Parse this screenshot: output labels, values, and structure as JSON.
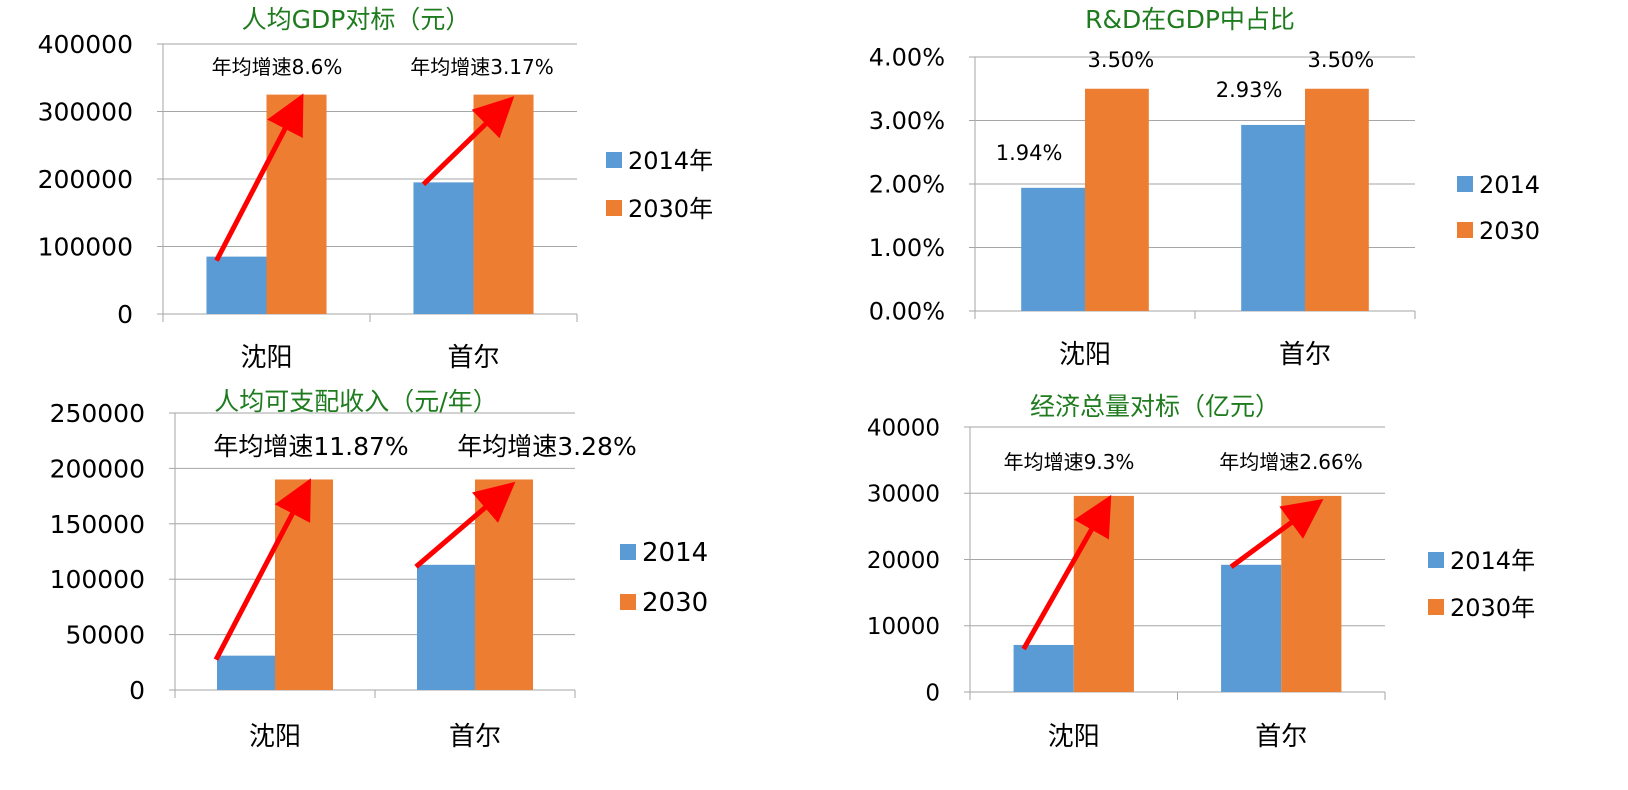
{
  "colors": {
    "series_2014": "#5b9bd5",
    "series_2030": "#ed7d31",
    "arrow": "#ff0000",
    "title": "#1e7b1e",
    "axis": "#a6a6a6",
    "grid": "#a6a6a6",
    "text": "#000000"
  },
  "chart_data": [
    {
      "type": "bar",
      "title": "人均GDP对标（元）",
      "categories": [
        "沈阳",
        "首尔"
      ],
      "series": [
        {
          "name": "2014年",
          "values": [
            85000,
            195000
          ]
        },
        {
          "name": "2030年",
          "values": [
            325000,
            325000
          ]
        }
      ],
      "ylim": [
        0,
        400000
      ],
      "yticks": [
        "400000",
        "300000",
        "200000",
        "100000",
        "0"
      ],
      "legend": "right",
      "grid": true,
      "annotations": [
        "年均增速8.6%",
        "年均增速3.17%"
      ],
      "arrows": true,
      "data_labels": []
    },
    {
      "type": "bar",
      "title": "R&D在GDP中占比",
      "categories": [
        "沈阳",
        "首尔"
      ],
      "series": [
        {
          "name": "2014",
          "values": [
            0.0194,
            0.0293
          ]
        },
        {
          "name": "2030",
          "values": [
            0.035,
            0.035
          ]
        }
      ],
      "ylim": [
        0,
        0.04
      ],
      "yticks": [
        "4.00%",
        "3.00%",
        "2.00%",
        "1.00%",
        "0.00%"
      ],
      "legend": "right",
      "grid": true,
      "annotations": [],
      "arrows": false,
      "data_labels": [
        [
          "1.94%",
          "2.93%"
        ],
        [
          "3.50%",
          "3.50%"
        ]
      ]
    },
    {
      "type": "bar",
      "title": "人均可支配收入（元/年）",
      "categories": [
        "沈阳",
        "首尔"
      ],
      "series": [
        {
          "name": "2014",
          "values": [
            31000,
            113000
          ]
        },
        {
          "name": "2030",
          "values": [
            190000,
            190000
          ]
        }
      ],
      "ylim": [
        0,
        250000
      ],
      "yticks": [
        "250000",
        "200000",
        "150000",
        "100000",
        "50000",
        "0"
      ],
      "legend": "right",
      "grid": true,
      "annotations": [
        "年均增速11.87%",
        "年均增速3.28%"
      ],
      "arrows": true,
      "data_labels": []
    },
    {
      "type": "bar",
      "title": "经济总量对标（亿元）",
      "categories": [
        "沈阳",
        "首尔"
      ],
      "series": [
        {
          "name": "2014年",
          "values": [
            7100,
            19200
          ]
        },
        {
          "name": "2030年",
          "values": [
            29600,
            29600
          ]
        }
      ],
      "ylim": [
        0,
        40000
      ],
      "yticks": [
        "40000",
        "30000",
        "20000",
        "10000",
        "0"
      ],
      "legend": "right",
      "grid": true,
      "annotations": [
        "年均增速9.3%",
        "年均增速2.66%"
      ],
      "arrows": true,
      "data_labels": []
    }
  ]
}
